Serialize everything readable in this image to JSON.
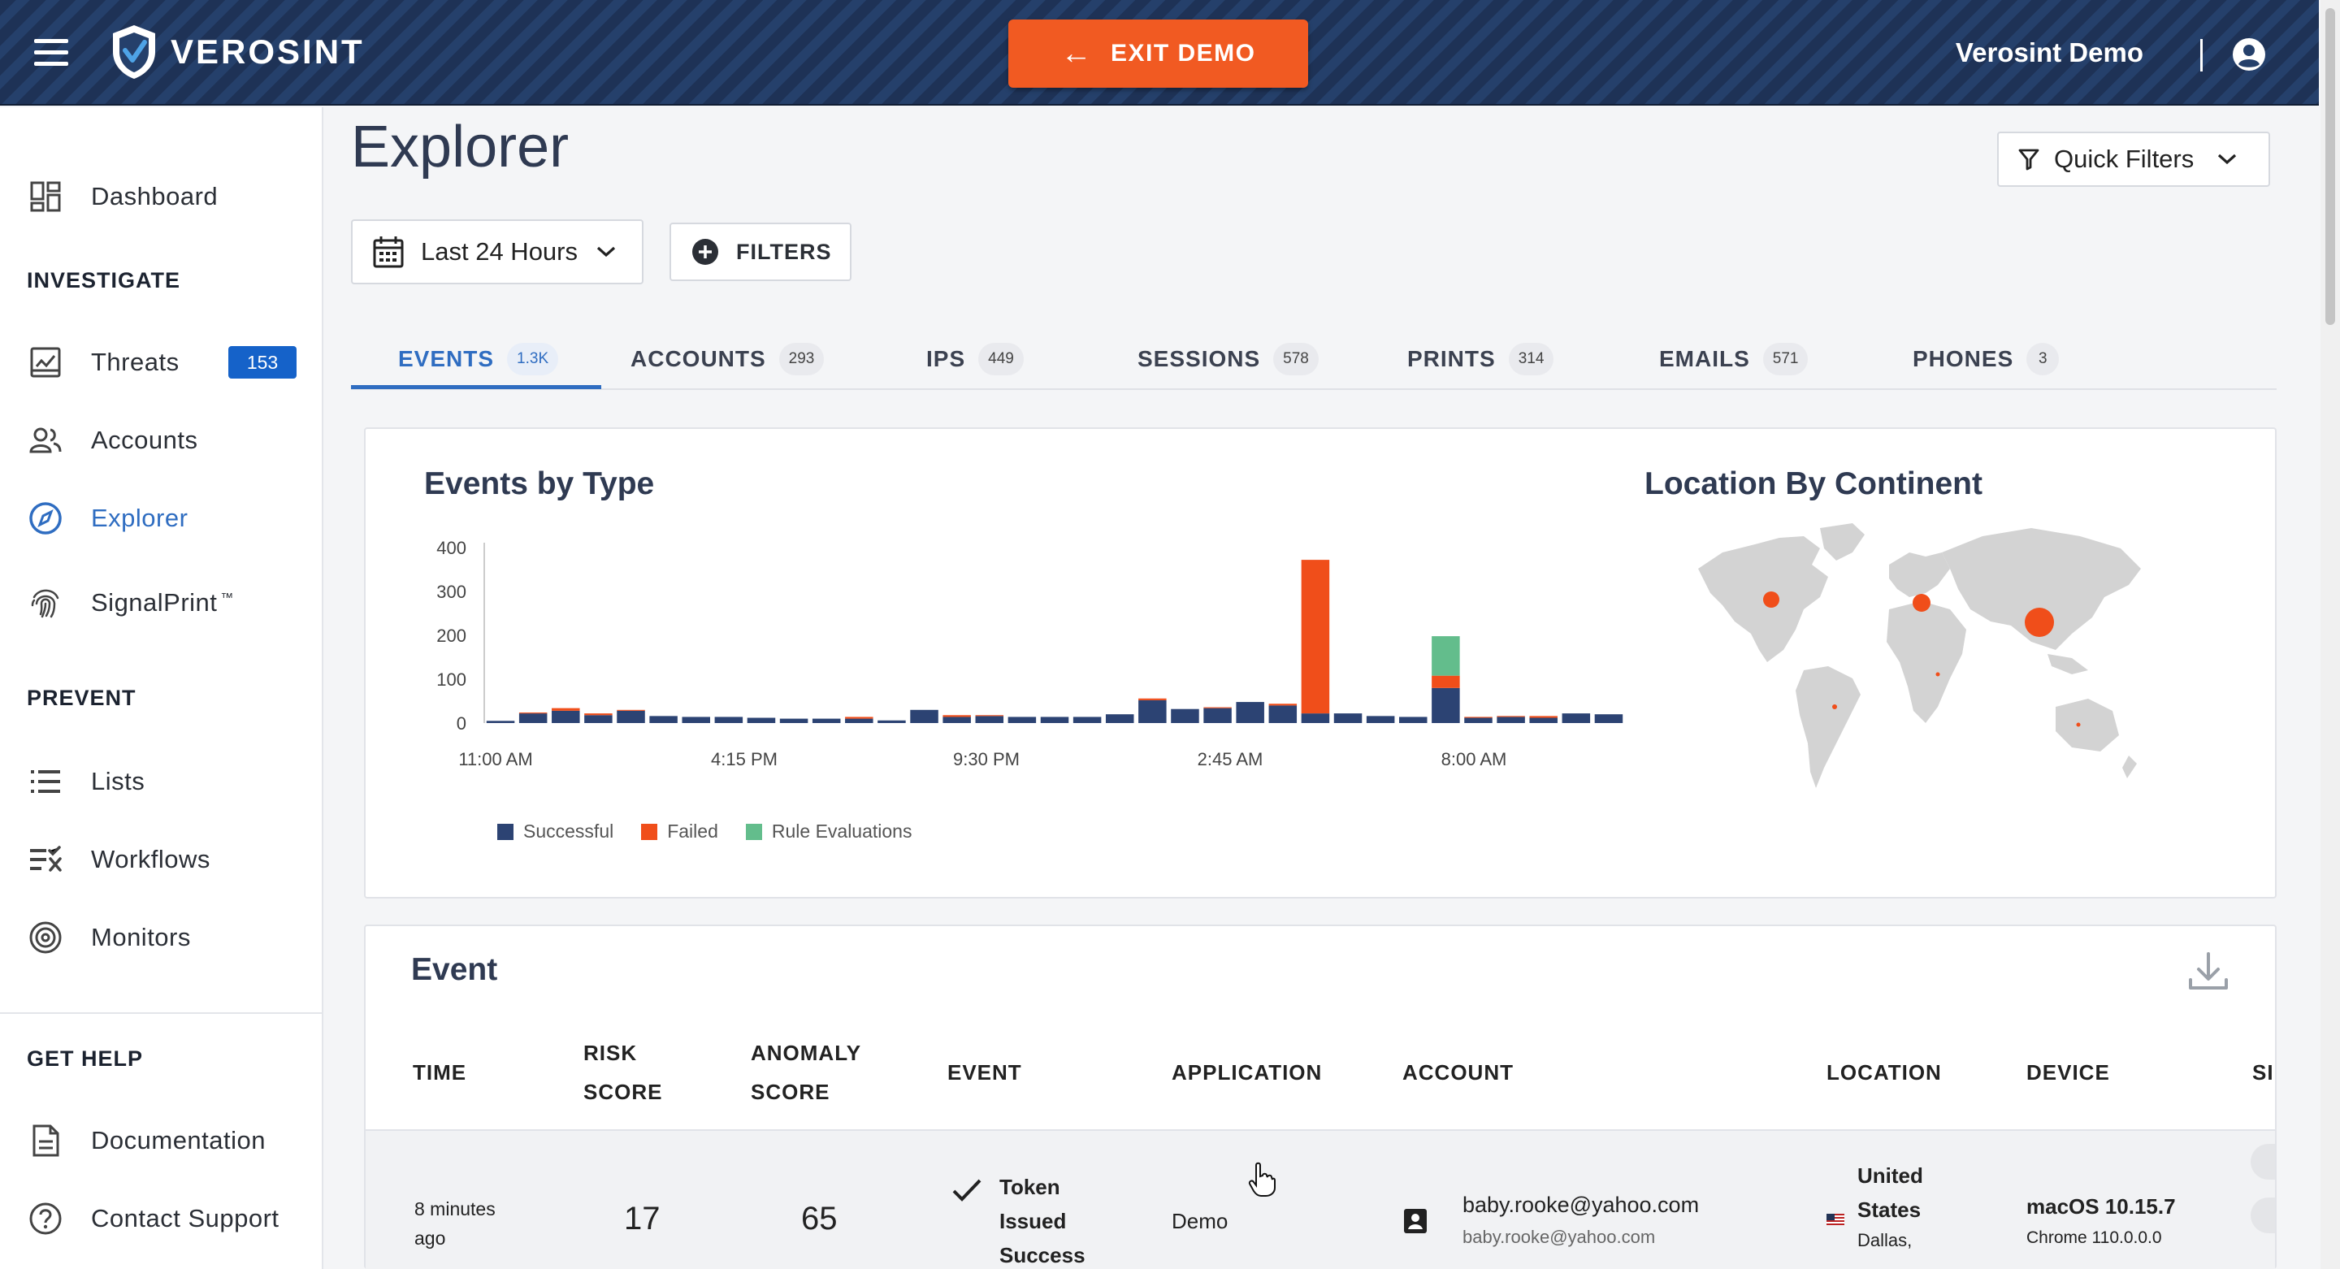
{
  "header": {
    "brand": "VEROSINT",
    "exit_label": "EXIT DEMO",
    "user_name": "Verosint Demo"
  },
  "sidebar": {
    "dashboard": "Dashboard",
    "investigate_title": "INVESTIGATE",
    "threats": "Threats",
    "threats_badge": "153",
    "accounts": "Accounts",
    "explorer": "Explorer",
    "signalprint": "SignalPrint",
    "signalprint_tm": "™",
    "prevent_title": "PREVENT",
    "lists": "Lists",
    "workflows": "Workflows",
    "monitors": "Monitors",
    "help_title": "GET HELP",
    "documentation": "Documentation",
    "contact_support": "Contact Support"
  },
  "main": {
    "title": "Explorer",
    "quick_filters": "Quick Filters",
    "date_range": "Last 24 Hours",
    "filters_label": "FILTERS",
    "tabs": [
      {
        "label": "EVENTS",
        "count": "1.3K"
      },
      {
        "label": "ACCOUNTS",
        "count": "293"
      },
      {
        "label": "IPS",
        "count": "449"
      },
      {
        "label": "SESSIONS",
        "count": "578"
      },
      {
        "label": "PRINTS",
        "count": "314"
      },
      {
        "label": "EMAILS",
        "count": "571"
      },
      {
        "label": "PHONES",
        "count": "3"
      }
    ]
  },
  "colors": {
    "successful": "#2c4373",
    "failed": "#f04e1a",
    "rule_evaluations": "#63bd8c",
    "accent": "#2f6dc1",
    "exit_button": "#f15a22"
  },
  "chart_data": [
    {
      "type": "bar",
      "stacked": true,
      "title": "Events by Type",
      "x_tick_labels": [
        "11:00 AM",
        "4:15 PM",
        "9:30 PM",
        "2:45 AM",
        "8:00 AM"
      ],
      "y_ticks": [
        "400",
        "300",
        "200",
        "100",
        "0"
      ],
      "ylim": [
        0,
        400
      ],
      "series": [
        {
          "name": "Successful",
          "values": [
            5,
            22,
            28,
            18,
            28,
            16,
            14,
            14,
            12,
            10,
            10,
            10,
            6,
            30,
            14,
            16,
            14,
            14,
            14,
            20,
            52,
            32,
            34,
            48,
            40,
            22,
            22,
            16,
            14,
            80,
            12,
            14,
            12,
            22,
            20
          ]
        },
        {
          "name": "Failed",
          "values": [
            0,
            2,
            6,
            4,
            2,
            0,
            0,
            0,
            0,
            0,
            0,
            4,
            0,
            0,
            4,
            2,
            0,
            0,
            0,
            0,
            4,
            0,
            2,
            0,
            4,
            350,
            0,
            0,
            0,
            28,
            2,
            2,
            4,
            0,
            0
          ]
        },
        {
          "name": "Rule Evaluations",
          "values": [
            0,
            0,
            0,
            0,
            0,
            0,
            0,
            0,
            0,
            0,
            0,
            0,
            0,
            0,
            0,
            0,
            0,
            0,
            0,
            0,
            0,
            0,
            0,
            0,
            0,
            0,
            0,
            0,
            0,
            90,
            0,
            0,
            0,
            0,
            0
          ]
        }
      ],
      "legend": "bottom"
    },
    {
      "type": "map",
      "title": "Location By Continent"
    }
  ],
  "table": {
    "title": "Event",
    "headers": {
      "time": "TIME",
      "risk_1": "RISK",
      "risk_2": "SCORE",
      "anomaly_1": "ANOMALY",
      "anomaly_2": "SCORE",
      "event": "EVENT",
      "application": "APPLICATION",
      "account": "ACCOUNT",
      "location": "LOCATION",
      "device": "DEVICE",
      "si": "SI"
    },
    "rows": [
      {
        "time_1": "8 minutes",
        "time_2": "ago",
        "risk": "17",
        "anomaly": "65",
        "event_1": "Token",
        "event_2": "Issued",
        "event_3": "Success",
        "application": "Demo",
        "account_main": "baby.rooke@yahoo.com",
        "account_sub": "baby.rooke@yahoo.com",
        "location_1": "United",
        "location_2": "States",
        "location_3": "Dallas,",
        "device_main": "macOS 10.15.7",
        "device_sub": "Chrome 110.0.0.0"
      }
    ]
  }
}
